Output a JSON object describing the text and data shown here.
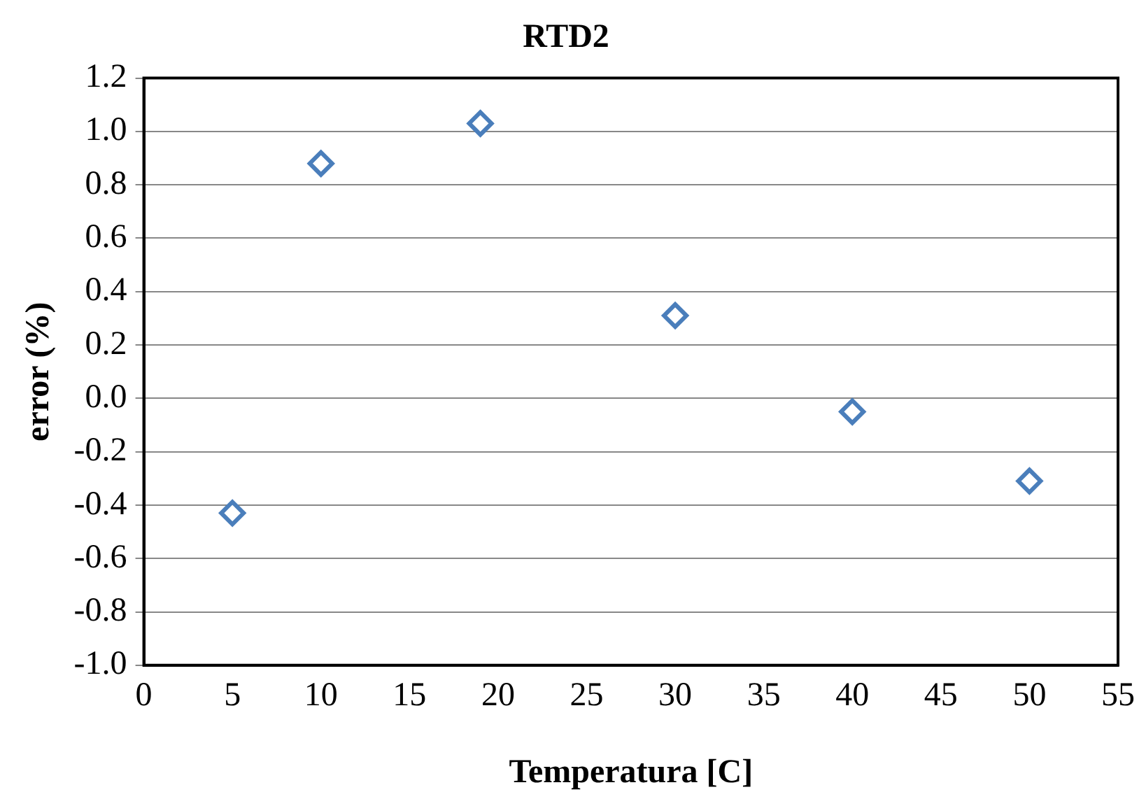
{
  "chart_data": {
    "type": "scatter",
    "title": "RTD2",
    "xlabel": "Temperatura [C]",
    "ylabel": "error (%)",
    "x": [
      5,
      10,
      19,
      30,
      40,
      50
    ],
    "series": [
      {
        "color": "#4a7ebb",
        "values": [
          -0.43,
          0.88,
          1.03,
          0.31,
          -0.05,
          -0.31
        ]
      }
    ],
    "xlim": [
      0,
      55
    ],
    "xticks": [
      0,
      5,
      10,
      15,
      20,
      25,
      30,
      35,
      40,
      45,
      50,
      55
    ],
    "ylim": [
      -1.0,
      1.2
    ],
    "yticks": [
      {
        "value": -1.0,
        "label": "-1.0"
      },
      -0.8,
      -0.6,
      -0.4,
      -0.2,
      {
        "value": 0,
        "label": "0.0"
      },
      0.2,
      0.4,
      0.6,
      0.8,
      {
        "value": 1.0,
        "label": "1.0"
      },
      1.2
    ],
    "grid": "y",
    "legend": false,
    "marker": "diamond"
  }
}
